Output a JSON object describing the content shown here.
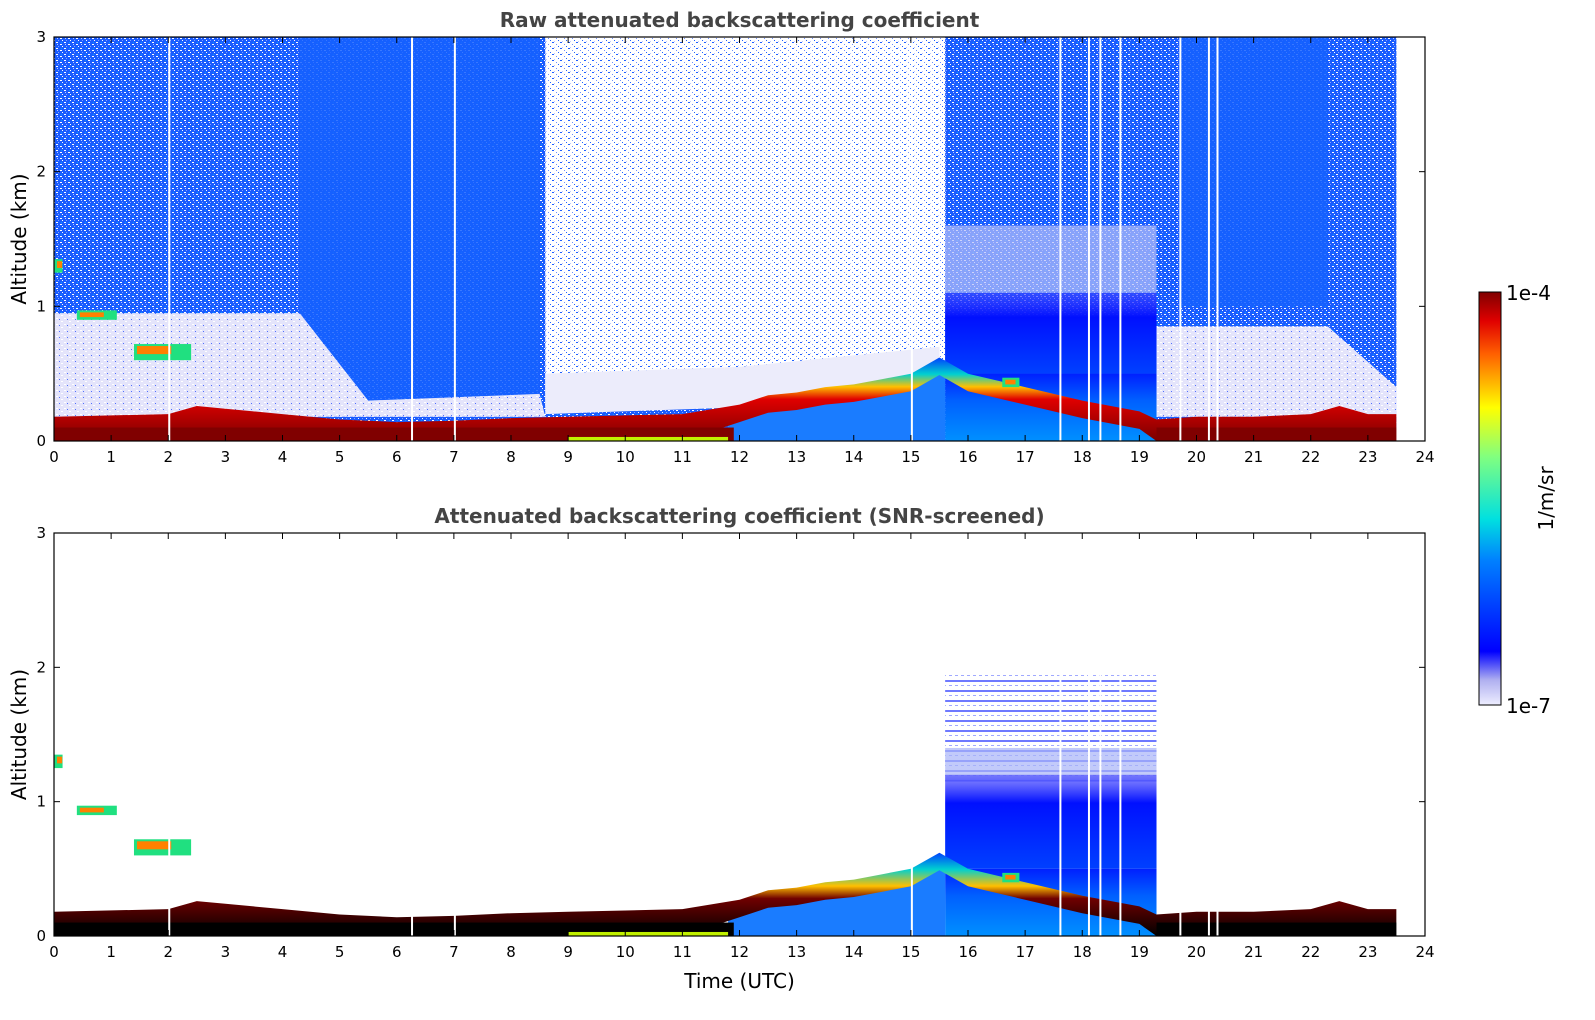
{
  "chart_data": [
    {
      "type": "heatmap",
      "title": "Raw attenuated backscattering coefficient",
      "xlabel": "",
      "ylabel": "Altitude (km)",
      "xlim": [
        0,
        24
      ],
      "ylim": [
        0,
        3
      ],
      "xticks": [
        "0",
        "1",
        "2",
        "3",
        "4",
        "5",
        "6",
        "7",
        "8",
        "9",
        "10",
        "11",
        "12",
        "13",
        "14",
        "15",
        "16",
        "17",
        "18",
        "19",
        "20",
        "21",
        "22",
        "23",
        "24"
      ],
      "yticks": [
        "0",
        "1",
        "2",
        "3"
      ],
      "data_end_time": 23.5,
      "boundary_layer_top_km": [
        [
          0,
          0.18
        ],
        [
          2,
          0.2
        ],
        [
          2.5,
          0.26
        ],
        [
          3,
          0.24
        ],
        [
          4,
          0.2
        ],
        [
          5,
          0.16
        ],
        [
          6,
          0.14
        ],
        [
          7,
          0.15
        ],
        [
          8,
          0.17
        ],
        [
          9,
          0.18
        ],
        [
          10,
          0.19
        ],
        [
          11,
          0.2
        ],
        [
          12,
          0.27
        ],
        [
          12.5,
          0.34
        ],
        [
          13,
          0.36
        ],
        [
          13.5,
          0.4
        ],
        [
          14,
          0.42
        ],
        [
          14.5,
          0.46
        ],
        [
          15,
          0.5
        ],
        [
          15.5,
          0.62
        ],
        [
          16,
          0.5
        ],
        [
          17,
          0.4
        ],
        [
          18,
          0.3
        ],
        [
          19,
          0.22
        ],
        [
          19.3,
          0.16
        ],
        [
          20,
          0.18
        ],
        [
          21,
          0.18
        ],
        [
          22,
          0.2
        ],
        [
          22.5,
          0.26
        ],
        [
          23,
          0.2
        ],
        [
          23.5,
          0.2
        ]
      ],
      "cloud_layer": {
        "start": 15.6,
        "end": 19.3,
        "base_km": 0.5,
        "top_km": 1.1
      },
      "aerosol_patches": [
        {
          "t0": 0.4,
          "t1": 1.1,
          "z0": 0.9,
          "z1": 0.97
        },
        {
          "t0": 1.4,
          "t1": 2.4,
          "z0": 0.6,
          "z1": 0.72
        },
        {
          "t0": 0.0,
          "t1": 0.15,
          "z0": 1.25,
          "z1": 1.35
        },
        {
          "t0": 16.6,
          "t1": 16.9,
          "z0": 0.4,
          "z1": 0.47
        }
      ],
      "colorbar": {
        "label": "1/m/sr",
        "min_label": "1e-7",
        "max_label": "1e-4",
        "scale": "log",
        "colormap": "jet"
      }
    },
    {
      "type": "heatmap",
      "title": "Attenuated backscattering coefficient (SNR-screened)",
      "xlabel": "Time (UTC)",
      "ylabel": "Altitude (km)",
      "xlim": [
        0,
        24
      ],
      "ylim": [
        0,
        3
      ],
      "xticks": [
        "0",
        "1",
        "2",
        "3",
        "4",
        "5",
        "6",
        "7",
        "8",
        "9",
        "10",
        "11",
        "12",
        "13",
        "14",
        "15",
        "16",
        "17",
        "18",
        "19",
        "20",
        "21",
        "22",
        "23",
        "24"
      ],
      "yticks": [
        "0",
        "1",
        "2",
        "3"
      ],
      "data_end_time": 23.5,
      "cloud_layer": {
        "start": 15.6,
        "end": 19.3,
        "base_km": 0.5,
        "top_km": 1.2
      },
      "screened_high_altitude": true
    }
  ]
}
